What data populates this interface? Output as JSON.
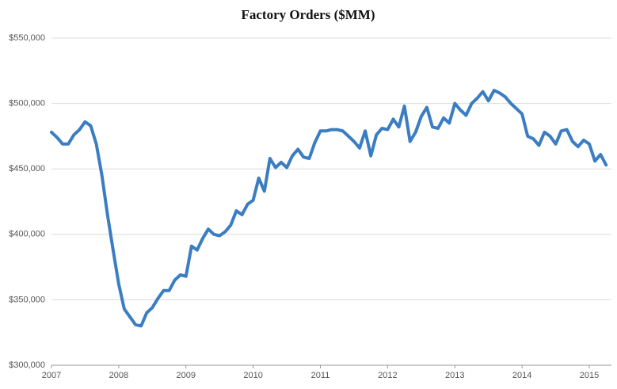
{
  "chart_data": {
    "type": "line",
    "title": "Factory Orders ($MM)",
    "categories": [
      "2007",
      null,
      null,
      null,
      null,
      null,
      null,
      null,
      null,
      null,
      null,
      null,
      "2008",
      null,
      null,
      null,
      null,
      null,
      null,
      null,
      null,
      null,
      null,
      null,
      "2009",
      null,
      null,
      null,
      null,
      null,
      null,
      null,
      null,
      null,
      null,
      null,
      "2010",
      null,
      null,
      null,
      null,
      null,
      null,
      null,
      null,
      null,
      null,
      null,
      "2011",
      null,
      null,
      null,
      null,
      null,
      null,
      null,
      null,
      null,
      null,
      null,
      "2012",
      null,
      null,
      null,
      null,
      null,
      null,
      null,
      null,
      null,
      null,
      null,
      "2013",
      null,
      null,
      null,
      null,
      null,
      null,
      null,
      null,
      null,
      null,
      null,
      "2014",
      null,
      null,
      null,
      null,
      null,
      null,
      null,
      null,
      null,
      null,
      null,
      "2015",
      null,
      null,
      null
    ],
    "series": [
      {
        "color": "#3b7dc2",
        "values": [
          478000,
          474000,
          469000,
          469000,
          476000,
          480000,
          486000,
          483000,
          469000,
          445000,
          415000,
          388000,
          362000,
          343000,
          337000,
          331000,
          330000,
          340000,
          344000,
          351000,
          357000,
          357000,
          365000,
          369000,
          368000,
          391000,
          388000,
          397000,
          404000,
          400000,
          399000,
          402000,
          407000,
          418000,
          415000,
          423000,
          426000,
          443000,
          433000,
          458000,
          451000,
          455000,
          451000,
          460000,
          465000,
          459000,
          458000,
          470000,
          479000,
          479000,
          480000,
          480000,
          479000,
          475000,
          471000,
          466000,
          479000,
          460000,
          476000,
          481000,
          480000,
          488000,
          482000,
          498000,
          471000,
          478000,
          490000,
          497000,
          482000,
          481000,
          489000,
          485000,
          500000,
          495000,
          491000,
          500000,
          504000,
          509000,
          502000,
          510000,
          508000,
          505000,
          500000,
          496000,
          492000,
          475000,
          473000,
          468000,
          478000,
          475000,
          469000,
          479000,
          480000,
          471000,
          467000,
          472000,
          469000,
          456000,
          461000,
          453000
        ]
      }
    ],
    "ylim": [
      300000,
      550000
    ],
    "yticks": [
      {
        "value": 300000,
        "label": "$300,000"
      },
      {
        "value": 350000,
        "label": "$350,000"
      },
      {
        "value": 400000,
        "label": "$400,000"
      },
      {
        "value": 450000,
        "label": "$450,000"
      },
      {
        "value": 500000,
        "label": "$500,000"
      },
      {
        "value": 550000,
        "label": "$550,000"
      }
    ],
    "grid": true
  }
}
